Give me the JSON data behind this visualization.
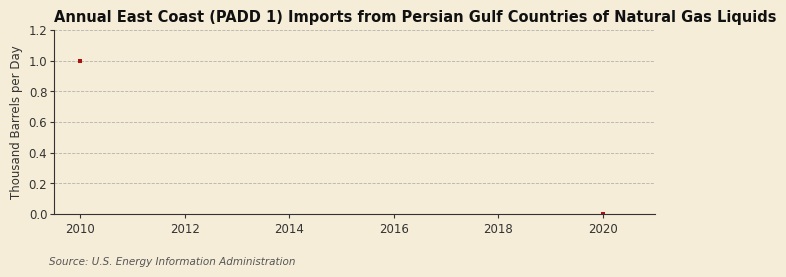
{
  "title": "Annual East Coast (PADD 1) Imports from Persian Gulf Countries of Natural Gas Liquids",
  "ylabel": "Thousand Barrels per Day",
  "source_text": "Source: U.S. Energy Information Administration",
  "x_data": [
    2010,
    2020
  ],
  "y_data": [
    1.0,
    0.0
  ],
  "xlim": [
    2009.5,
    2021.0
  ],
  "ylim": [
    0.0,
    1.2
  ],
  "yticks": [
    0.0,
    0.2,
    0.4,
    0.6,
    0.8,
    1.0,
    1.2
  ],
  "xticks": [
    2010,
    2012,
    2014,
    2016,
    2018,
    2020
  ],
  "marker_color": "#AA1111",
  "background_color": "#F5EDD8",
  "plot_bg_color": "#F5EDD8",
  "grid_color": "#999999",
  "spine_color": "#333333",
  "tick_color": "#333333",
  "title_fontsize": 10.5,
  "label_fontsize": 8.5,
  "tick_fontsize": 8.5,
  "source_fontsize": 7.5
}
